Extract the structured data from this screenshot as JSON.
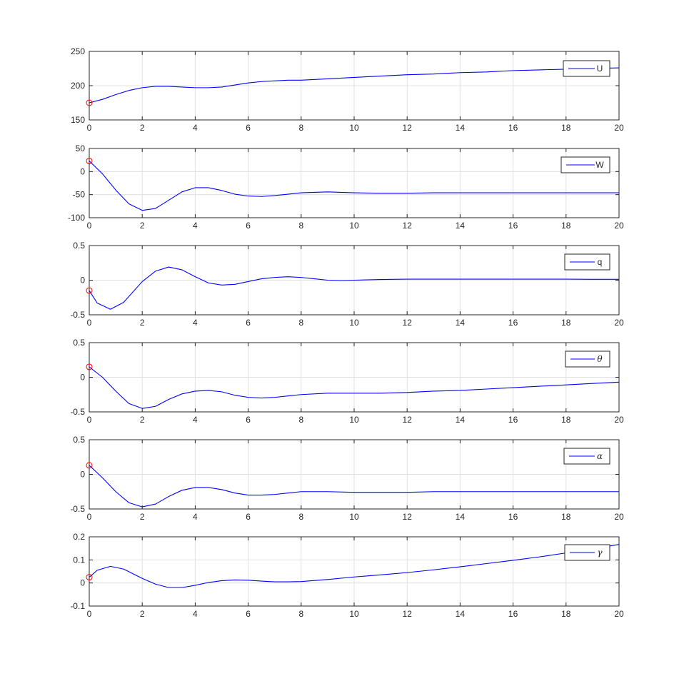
{
  "chart_data": [
    {
      "type": "line",
      "xlim": [
        0,
        20
      ],
      "ylim": [
        150,
        250
      ],
      "xticks": [
        0,
        2,
        4,
        6,
        8,
        10,
        12,
        14,
        16,
        18,
        20
      ],
      "yticks": [
        150,
        200,
        250
      ],
      "xtick_labels": [
        "0",
        "2",
        "4",
        "6",
        "8",
        "10",
        "12",
        "14",
        "16",
        "18",
        "20"
      ],
      "ytick_labels": [
        "150",
        "200",
        "250"
      ],
      "grid": true,
      "legend_position": "top-right",
      "legend_italic": false,
      "initial_marker": {
        "x": 0,
        "y": 175,
        "color": "#ff0000"
      },
      "series": [
        {
          "name": "U",
          "color": "#0000ff",
          "x": [
            0,
            0.5,
            1,
            1.5,
            2,
            2.5,
            3,
            3.5,
            4,
            4.5,
            5,
            5.5,
            6,
            6.5,
            7,
            7.5,
            8,
            9,
            10,
            11,
            12,
            13,
            14,
            15,
            16,
            17,
            18,
            19,
            20
          ],
          "y": [
            175,
            180,
            187,
            193,
            197,
            199,
            199,
            198,
            197,
            197,
            198,
            201,
            204,
            206,
            207,
            208,
            208,
            210,
            212,
            214,
            216,
            217,
            219,
            220,
            222,
            223,
            224,
            225,
            226
          ]
        }
      ]
    },
    {
      "type": "line",
      "xlim": [
        0,
        20
      ],
      "ylim": [
        -100,
        50
      ],
      "xticks": [
        0,
        2,
        4,
        6,
        8,
        10,
        12,
        14,
        16,
        18,
        20
      ],
      "yticks": [
        -100,
        -50,
        0,
        50
      ],
      "xtick_labels": [
        "0",
        "2",
        "4",
        "6",
        "8",
        "10",
        "12",
        "14",
        "16",
        "18",
        "20"
      ],
      "ytick_labels": [
        "-100",
        "-50",
        "0",
        "50"
      ],
      "grid": true,
      "legend_position": "top-right",
      "legend_italic": false,
      "initial_marker": {
        "x": 0,
        "y": 23,
        "color": "#ff0000"
      },
      "series": [
        {
          "name": "W",
          "color": "#0000ff",
          "x": [
            0,
            0.5,
            1,
            1.5,
            2,
            2.5,
            3,
            3.5,
            4,
            4.5,
            5,
            5.5,
            6,
            6.5,
            7,
            7.5,
            8,
            8.5,
            9,
            10,
            11,
            12,
            13,
            14,
            15,
            16,
            17,
            18,
            19,
            20
          ],
          "y": [
            23,
            -5,
            -40,
            -70,
            -84,
            -80,
            -62,
            -44,
            -35,
            -35,
            -41,
            -49,
            -53,
            -54,
            -52,
            -49,
            -46,
            -45,
            -44,
            -46,
            -47,
            -47,
            -46,
            -46,
            -46,
            -46,
            -46,
            -46,
            -46,
            -46
          ]
        }
      ]
    },
    {
      "type": "line",
      "xlim": [
        0,
        20
      ],
      "ylim": [
        -0.5,
        0.5
      ],
      "xticks": [
        0,
        2,
        4,
        6,
        8,
        10,
        12,
        14,
        16,
        18,
        20
      ],
      "yticks": [
        -0.5,
        0,
        0.5
      ],
      "xtick_labels": [
        "0",
        "2",
        "4",
        "6",
        "8",
        "10",
        "12",
        "14",
        "16",
        "18",
        "20"
      ],
      "ytick_labels": [
        "-0.5",
        "0",
        "0.5"
      ],
      "grid": true,
      "legend_position": "top-right",
      "legend_italic": false,
      "initial_marker": {
        "x": 0,
        "y": -0.15,
        "color": "#ff0000"
      },
      "series": [
        {
          "name": "q",
          "color": "#0000ff",
          "x": [
            0,
            0.3,
            0.8,
            1.3,
            2,
            2.5,
            3,
            3.5,
            4,
            4.5,
            5,
            5.5,
            6,
            6.5,
            7,
            7.5,
            8,
            8.5,
            9,
            9.5,
            10,
            11,
            12,
            13,
            14,
            15,
            16,
            17,
            18,
            19,
            20
          ],
          "y": [
            -0.15,
            -0.33,
            -0.42,
            -0.32,
            -0.02,
            0.13,
            0.19,
            0.15,
            0.05,
            -0.04,
            -0.07,
            -0.06,
            -0.02,
            0.02,
            0.04,
            0.05,
            0.04,
            0.02,
            0.0,
            -0.005,
            0.0,
            0.01,
            0.015,
            0.015,
            0.015,
            0.015,
            0.015,
            0.015,
            0.015,
            0.012,
            0.012
          ]
        }
      ]
    },
    {
      "type": "line",
      "xlim": [
        0,
        20
      ],
      "ylim": [
        -0.5,
        0.5
      ],
      "xticks": [
        0,
        2,
        4,
        6,
        8,
        10,
        12,
        14,
        16,
        18,
        20
      ],
      "yticks": [
        -0.5,
        0,
        0.5
      ],
      "xtick_labels": [
        "0",
        "2",
        "4",
        "6",
        "8",
        "10",
        "12",
        "14",
        "16",
        "18",
        "20"
      ],
      "ytick_labels": [
        "-0.5",
        "0",
        "0.5"
      ],
      "grid": true,
      "legend_position": "top-right",
      "legend_italic": true,
      "initial_marker": {
        "x": 0,
        "y": 0.15,
        "color": "#ff0000"
      },
      "series": [
        {
          "name": "θ",
          "color": "#0000ff",
          "x": [
            0,
            0.5,
            1,
            1.5,
            2,
            2.5,
            3,
            3.5,
            4,
            4.5,
            5,
            5.5,
            6,
            6.5,
            7,
            7.5,
            8,
            9,
            10,
            11,
            12,
            13,
            14,
            15,
            16,
            17,
            18,
            19,
            20
          ],
          "y": [
            0.15,
            0.0,
            -0.2,
            -0.38,
            -0.45,
            -0.42,
            -0.32,
            -0.24,
            -0.2,
            -0.19,
            -0.21,
            -0.26,
            -0.29,
            -0.3,
            -0.29,
            -0.27,
            -0.25,
            -0.23,
            -0.23,
            -0.23,
            -0.22,
            -0.2,
            -0.19,
            -0.17,
            -0.15,
            -0.13,
            -0.11,
            -0.09,
            -0.07
          ]
        }
      ]
    },
    {
      "type": "line",
      "xlim": [
        0,
        20
      ],
      "ylim": [
        -0.5,
        0.5
      ],
      "xticks": [
        0,
        2,
        4,
        6,
        8,
        10,
        12,
        14,
        16,
        18,
        20
      ],
      "yticks": [
        -0.5,
        0,
        0.5
      ],
      "xtick_labels": [
        "0",
        "2",
        "4",
        "6",
        "8",
        "10",
        "12",
        "14",
        "16",
        "18",
        "20"
      ],
      "ytick_labels": [
        "-0.5",
        "0",
        "0.5"
      ],
      "grid": true,
      "legend_position": "top-right",
      "legend_italic": true,
      "initial_marker": {
        "x": 0,
        "y": 0.13,
        "color": "#ff0000"
      },
      "series": [
        {
          "name": "α",
          "color": "#0000ff",
          "x": [
            0,
            0.5,
            1,
            1.5,
            2,
            2.5,
            3,
            3.5,
            4,
            4.5,
            5,
            5.5,
            6,
            6.5,
            7,
            7.5,
            8,
            8.5,
            9,
            10,
            11,
            12,
            13,
            14,
            15,
            16,
            17,
            18,
            19,
            20
          ],
          "y": [
            0.13,
            -0.05,
            -0.25,
            -0.41,
            -0.47,
            -0.43,
            -0.32,
            -0.23,
            -0.19,
            -0.19,
            -0.22,
            -0.27,
            -0.3,
            -0.3,
            -0.29,
            -0.27,
            -0.25,
            -0.25,
            -0.25,
            -0.26,
            -0.26,
            -0.26,
            -0.25,
            -0.25,
            -0.25,
            -0.25,
            -0.25,
            -0.25,
            -0.25,
            -0.25
          ]
        }
      ]
    },
    {
      "type": "line",
      "xlim": [
        0,
        20
      ],
      "ylim": [
        -0.1,
        0.2
      ],
      "xticks": [
        0,
        2,
        4,
        6,
        8,
        10,
        12,
        14,
        16,
        18,
        20
      ],
      "yticks": [
        -0.1,
        0,
        0.1,
        0.2
      ],
      "xtick_labels": [
        "0",
        "2",
        "4",
        "6",
        "8",
        "10",
        "12",
        "14",
        "16",
        "18",
        "20"
      ],
      "ytick_labels": [
        "-0.1",
        "0",
        "0.1",
        "0.2"
      ],
      "grid": true,
      "legend_position": "top-right",
      "legend_italic": true,
      "initial_marker": {
        "x": 0,
        "y": 0.025,
        "color": "#ff0000"
      },
      "series": [
        {
          "name": "γ",
          "color": "#0000ff",
          "x": [
            0,
            0.3,
            0.8,
            1.3,
            2,
            2.5,
            3,
            3.5,
            4,
            4.5,
            5,
            5.5,
            6,
            6.5,
            7,
            7.5,
            8,
            9,
            10,
            11,
            12,
            13,
            14,
            15,
            16,
            17,
            18,
            19,
            20
          ],
          "y": [
            0.025,
            0.055,
            0.072,
            0.06,
            0.02,
            -0.005,
            -0.02,
            -0.02,
            -0.01,
            0.002,
            0.01,
            0.013,
            0.012,
            0.008,
            0.005,
            0.005,
            0.006,
            0.015,
            0.026,
            0.035,
            0.045,
            0.057,
            0.07,
            0.084,
            0.098,
            0.113,
            0.13,
            0.148,
            0.167
          ]
        }
      ]
    }
  ]
}
